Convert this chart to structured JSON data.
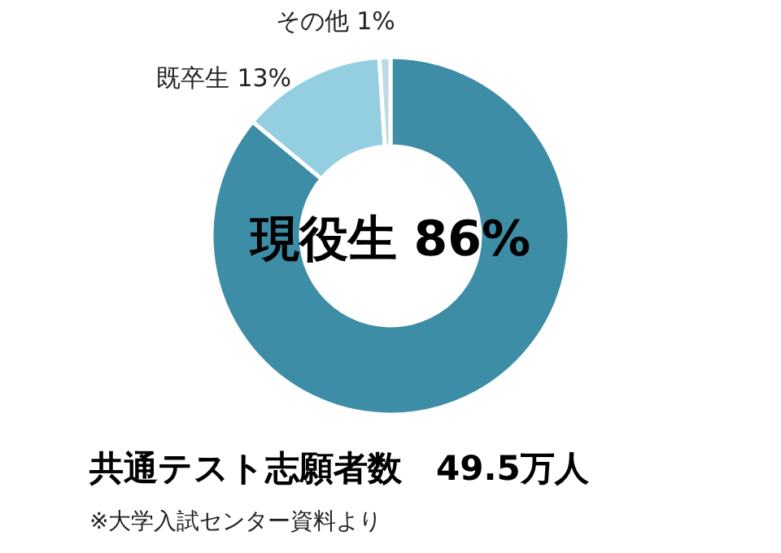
{
  "chart_data": {
    "type": "donut",
    "title": "共通テスト志願者数　49.5万人",
    "categories": [
      "現役生",
      "既卒生",
      "その他"
    ],
    "values": [
      86,
      13,
      1
    ],
    "value_labels": [
      "86%",
      "13%",
      "1%"
    ],
    "colors": [
      "#3d8da6",
      "#93cfe0",
      "#bcdbe6"
    ],
    "annotations": [
      "※大学入試センター資料より"
    ]
  }
}
